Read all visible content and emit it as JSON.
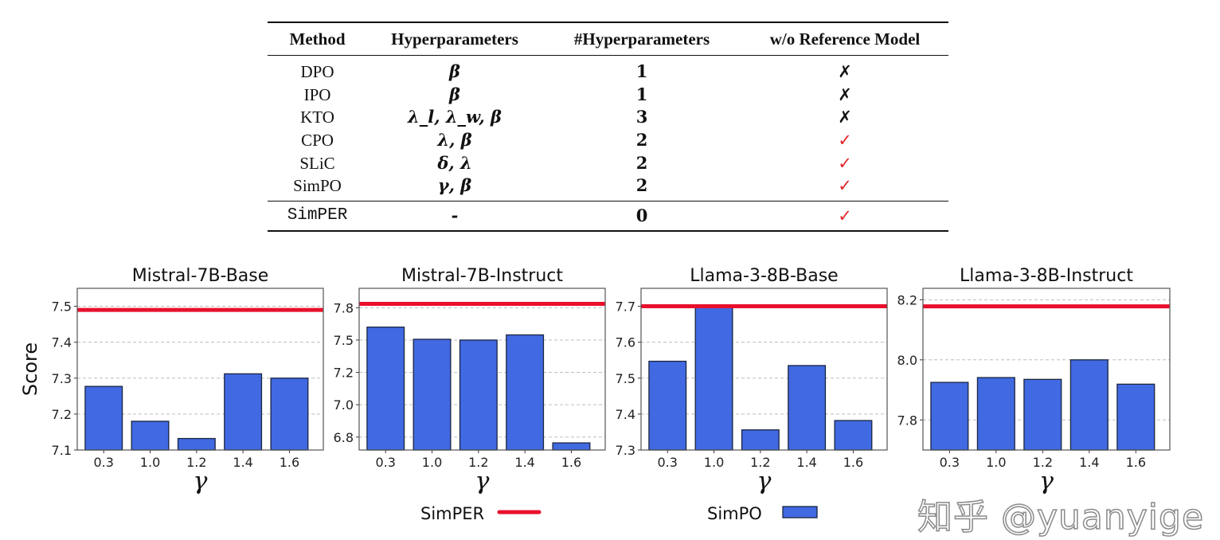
{
  "table": {
    "headers": [
      "Method",
      "Hyperparameters",
      "#Hyperparameters",
      "w/o Reference Model"
    ],
    "rows": [
      {
        "method": "DPO",
        "hyper": "β",
        "count": "1",
        "no_ref": "✗",
        "ok": false
      },
      {
        "method": "IPO",
        "hyper": "β",
        "count": "1",
        "no_ref": "✗",
        "ok": false
      },
      {
        "method": "KTO",
        "hyper": "λ_l, λ_w, β",
        "count": "3",
        "no_ref": "✗",
        "ok": false
      },
      {
        "method": "CPO",
        "hyper": "λ, β",
        "count": "2",
        "no_ref": "✓",
        "ok": true
      },
      {
        "method": "SLiC",
        "hyper": "δ, λ",
        "count": "2",
        "no_ref": "✓",
        "ok": true
      },
      {
        "method": "SimPO",
        "hyper": "γ, β",
        "count": "2",
        "no_ref": "✓",
        "ok": true
      }
    ],
    "ours": {
      "method": "SimPER",
      "hyper": "-",
      "count": "0",
      "no_ref": "✓",
      "ok": true
    }
  },
  "legend": {
    "simper": "SimPER",
    "simpo": "SimPO"
  },
  "colors": {
    "simper_line": "#e8102c",
    "simpo_bar": "#4169e1",
    "check": "#e0262b"
  },
  "watermark": "知乎 @yuanyige",
  "chart_data": [
    {
      "type": "bar",
      "title": "Mistral-7B-Base",
      "xlabel": "γ",
      "ylabel": "Score",
      "categories": [
        "0.3",
        "1.0",
        "1.2",
        "1.4",
        "1.6"
      ],
      "series": [
        {
          "name": "SimPO",
          "values": [
            7.277,
            7.18,
            7.132,
            7.312,
            7.3
          ]
        }
      ],
      "reference": {
        "name": "SimPER",
        "value": 7.49
      },
      "ylim": [
        7.1,
        7.55
      ],
      "tick_values": [
        7.1,
        7.2,
        7.3,
        7.4,
        7.5
      ],
      "tick_labels": [
        "7.1",
        "7.2",
        "7.3",
        "7.4",
        "7.5"
      ],
      "grid": true
    },
    {
      "type": "bar",
      "title": "Mistral-7B-Instruct",
      "xlabel": "γ",
      "ylabel": "",
      "categories": [
        "0.3",
        "1.0",
        "1.2",
        "1.4",
        "1.6"
      ],
      "series": [
        {
          "name": "SimPO",
          "values": [
            7.6,
            7.506,
            7.5,
            7.54,
            6.705
          ]
        }
      ],
      "reference": {
        "name": "SimPER",
        "value": 7.78
      },
      "ylim": [
        6.65,
        7.9
      ],
      "tick_values": [
        6.75,
        7.0,
        7.25,
        7.5,
        7.75
      ],
      "tick_labels": [
        "6.8",
        "7.0",
        "7.2",
        "7.5",
        "7.8"
      ],
      "grid": true
    },
    {
      "type": "bar",
      "title": "Llama-3-8B-Base",
      "xlabel": "γ",
      "ylabel": "",
      "categories": [
        "0.3",
        "1.0",
        "1.2",
        "1.4",
        "1.6"
      ],
      "series": [
        {
          "name": "SimPO",
          "values": [
            7.547,
            7.7,
            7.356,
            7.535,
            7.382
          ]
        }
      ],
      "reference": {
        "name": "SimPER",
        "value": 7.7
      },
      "ylim": [
        7.3,
        7.75
      ],
      "tick_values": [
        7.3,
        7.4,
        7.5,
        7.6,
        7.7
      ],
      "tick_labels": [
        "7.3",
        "7.4",
        "7.5",
        "7.6",
        "7.7"
      ],
      "grid": true
    },
    {
      "type": "bar",
      "title": "Llama-3-8B-Instruct",
      "xlabel": "γ",
      "ylabel": "",
      "categories": [
        "0.3",
        "1.0",
        "1.2",
        "1.4",
        "1.6"
      ],
      "series": [
        {
          "name": "SimPO",
          "values": [
            7.925,
            7.941,
            7.935,
            8.0,
            7.919
          ]
        }
      ],
      "reference": {
        "name": "SimPER",
        "value": 8.178
      },
      "ylim": [
        7.7,
        8.238
      ],
      "tick_values": [
        7.8,
        8.0,
        8.2
      ],
      "tick_labels": [
        "7.8",
        "8.0",
        "8.2"
      ],
      "grid": true
    }
  ]
}
